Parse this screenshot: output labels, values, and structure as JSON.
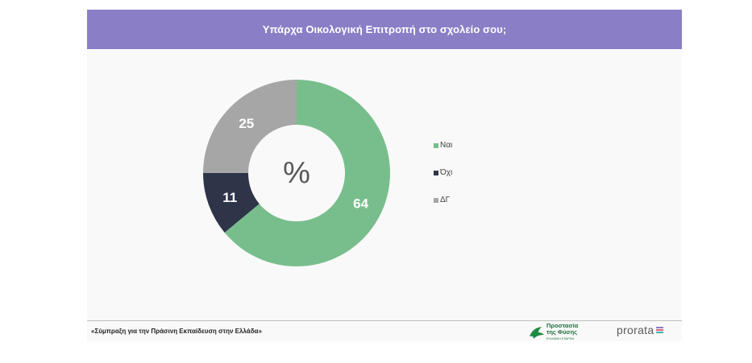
{
  "title": "Υπάρχα Οικολογική Επιτροπή στο σχολείο σου;",
  "footer": "«Σύμπραξη για την Πράσινη Εκπαίδευση στην Ελλάδα»",
  "logos": {
    "fysi_line1": "Προστασία",
    "fysi_line2": "της Φύσης",
    "fysi_line3": "ΕΛΛΗΝΙΚΗ ΕΤΑΙΡΕΙΑ",
    "prorata": "prorata"
  },
  "colors": {
    "title_bar": "#8a7fc6",
    "nai": "#78be8c",
    "oxi": "#2e3549",
    "dg": "#a6a6a6"
  },
  "chart_data": {
    "type": "pie",
    "donut": true,
    "center_label": "%",
    "title": "Υπάρχα Οικολογική Επιτροπή στο σχολείο σου;",
    "categories": [
      "Ναι",
      "Όχι",
      "ΔΓ"
    ],
    "values": [
      64,
      11,
      25
    ],
    "colors": [
      "#78be8c",
      "#2e3549",
      "#a6a6a6"
    ],
    "legend_position": "right",
    "data_labels": [
      "64",
      "11",
      "25"
    ]
  }
}
